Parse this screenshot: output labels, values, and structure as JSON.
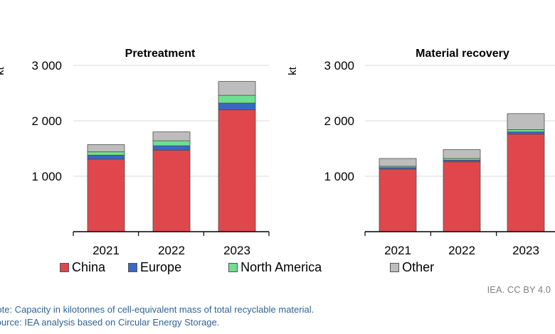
{
  "colors": {
    "China": "#e0474c",
    "Europe": "#3a66c8",
    "North America": "#6fe08e",
    "Other": "#bdbdbd"
  },
  "legend": [
    "China",
    "Europe",
    "North America",
    "Other"
  ],
  "credit": "IEA. CC BY 4.0",
  "note": "Note: Capacity in kilotonnes of cell-equivalent mass of total recyclable material.",
  "source": "Source: IEA analysis based on Circular Energy Storage.",
  "chart_data": [
    {
      "type": "bar",
      "stacked": true,
      "title": "Pretreatment",
      "ylabel": "kt",
      "ylim": [
        0,
        3000
      ],
      "yticks": [
        1000,
        2000,
        3000
      ],
      "ytick_labels": [
        "1 000",
        "2 000",
        "3 000"
      ],
      "categories": [
        "2021",
        "2022",
        "2023"
      ],
      "series": [
        {
          "name": "China",
          "values": [
            1310,
            1470,
            2200
          ]
        },
        {
          "name": "Europe",
          "values": [
            70,
            80,
            120
          ]
        },
        {
          "name": "North America",
          "values": [
            60,
            90,
            140
          ]
        },
        {
          "name": "Other",
          "values": [
            130,
            160,
            250
          ]
        }
      ]
    },
    {
      "type": "bar",
      "stacked": true,
      "title": "Material recovery",
      "ylabel": "kt",
      "ylim": [
        0,
        3000
      ],
      "yticks": [
        1000,
        2000,
        3000
      ],
      "ytick_labels": [
        "1 000",
        "2 000",
        "3 000"
      ],
      "categories": [
        "2021",
        "2022",
        "2023"
      ],
      "series": [
        {
          "name": "China",
          "values": [
            1130,
            1260,
            1760
          ]
        },
        {
          "name": "Europe",
          "values": [
            25,
            30,
            40
          ]
        },
        {
          "name": "North America",
          "values": [
            25,
            30,
            40
          ]
        },
        {
          "name": "Other",
          "values": [
            140,
            160,
            290
          ]
        }
      ]
    }
  ]
}
